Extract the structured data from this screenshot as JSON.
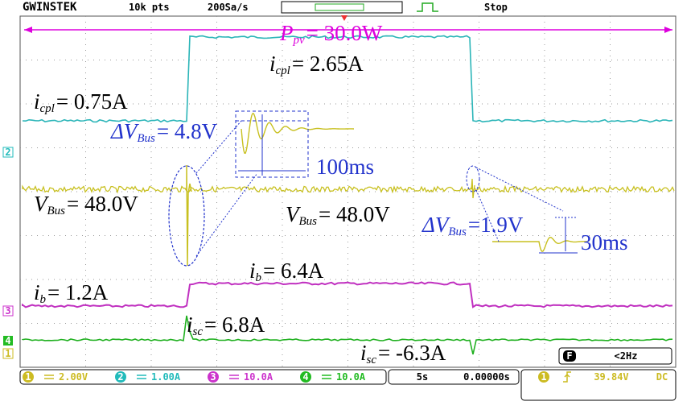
{
  "header": {
    "brand": "GWINSTEK",
    "points": "10k pts",
    "rate": "200Sa/s",
    "state": "Stop"
  },
  "annotations": [
    {
      "symbol": "P",
      "sub": "pv",
      "text": "= 30.0W"
    },
    {
      "symbol": "i",
      "sub": "cpl",
      "text": "= 2.65A"
    },
    {
      "symbol": "i",
      "sub": "cpl",
      "text": "= 0.75A"
    },
    {
      "symbol": "ΔV",
      "sub": "Bus",
      "text": "= 4.8V"
    },
    {
      "text": "100ms"
    },
    {
      "symbol": "V",
      "sub": "Bus",
      "text": "= 48.0V"
    },
    {
      "symbol": "V",
      "sub": "Bus",
      "text": "= 48.0V"
    },
    {
      "symbol": "ΔV",
      "sub": "Bus",
      "text": "=1.9V"
    },
    {
      "text": "30ms"
    },
    {
      "symbol": "i",
      "sub": "b",
      "text": "= 6.4A"
    },
    {
      "symbol": "i",
      "sub": "b",
      "text": "= 1.2A"
    },
    {
      "symbol": "i",
      "sub": "sc",
      "text": "= 6.8A"
    },
    {
      "symbol": "i",
      "sub": "sc",
      "text": "= -6.3A"
    }
  ],
  "channels": [
    {
      "id": "1",
      "scale": "2.00V"
    },
    {
      "id": "2",
      "scale": "1.00A"
    },
    {
      "id": "3",
      "scale": "10.0A"
    },
    {
      "id": "4",
      "scale": "10.0A"
    }
  ],
  "timebase": {
    "scale": "5s",
    "position": "0.00000s"
  },
  "trigger": {
    "channel": "1",
    "level": "39.84V",
    "coupling": "DC"
  },
  "filter": {
    "icon": "F",
    "text": "<2Hz"
  }
}
